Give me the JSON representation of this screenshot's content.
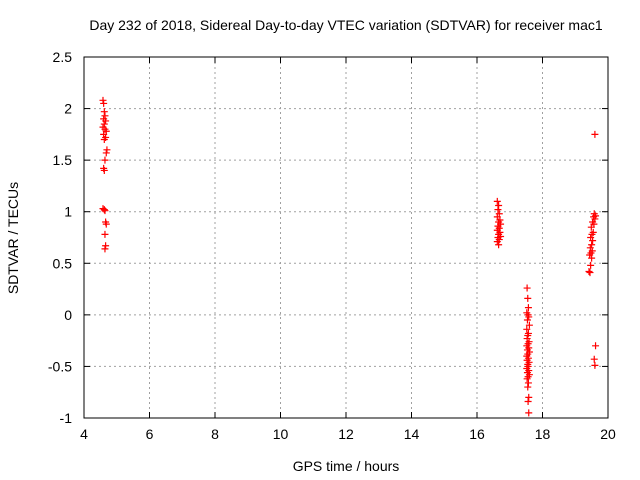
{
  "chart_data": {
    "type": "scatter",
    "title": "Day 232 of 2018, Sidereal Day-to-day VTEC variation (SDTVAR) for receiver mac1",
    "xlabel": "GPS time / hours",
    "ylabel": "SDTVAR / TECUs",
    "xlim": [
      4,
      20
    ],
    "ylim": [
      -1,
      2.5
    ],
    "xticks": [
      4,
      6,
      8,
      10,
      12,
      14,
      16,
      18,
      20
    ],
    "xtick_labels": [
      "4",
      "6",
      "8",
      "10",
      "12",
      "14",
      "16",
      "18",
      "20"
    ],
    "yticks": [
      -1,
      -0.5,
      0,
      0.5,
      1,
      1.5,
      2,
      2.5
    ],
    "ytick_labels": [
      "-1",
      "-0.5",
      "0",
      "0.5",
      "1",
      "1.5",
      "2",
      "2.5"
    ],
    "grid": true,
    "marker": "+",
    "color": "#ff0000",
    "series": [
      {
        "name": "SDTVAR",
        "points": [
          [
            4.58,
            2.08
          ],
          [
            4.6,
            2.05
          ],
          [
            4.62,
            1.97
          ],
          [
            4.64,
            1.93
          ],
          [
            4.6,
            1.9
          ],
          [
            4.66,
            1.88
          ],
          [
            4.62,
            1.85
          ],
          [
            4.58,
            1.82
          ],
          [
            4.64,
            1.8
          ],
          [
            4.68,
            1.78
          ],
          [
            4.6,
            1.75
          ],
          [
            4.66,
            1.72
          ],
          [
            4.62,
            1.7
          ],
          [
            4.7,
            1.6
          ],
          [
            4.68,
            1.57
          ],
          [
            4.64,
            1.5
          ],
          [
            4.6,
            1.42
          ],
          [
            4.62,
            1.4
          ],
          [
            4.58,
            1.03
          ],
          [
            4.62,
            1.02
          ],
          [
            4.64,
            1.01
          ],
          [
            4.66,
            0.9
          ],
          [
            4.68,
            0.88
          ],
          [
            4.64,
            0.78
          ],
          [
            4.66,
            0.67
          ],
          [
            4.64,
            0.64
          ],
          [
            16.62,
            1.1
          ],
          [
            16.66,
            1.06
          ],
          [
            16.64,
            1.02
          ],
          [
            16.68,
            0.98
          ],
          [
            16.62,
            0.95
          ],
          [
            16.7,
            0.92
          ],
          [
            16.66,
            0.9
          ],
          [
            16.72,
            0.88
          ],
          [
            16.64,
            0.86
          ],
          [
            16.68,
            0.84
          ],
          [
            16.62,
            0.82
          ],
          [
            16.7,
            0.8
          ],
          [
            16.66,
            0.78
          ],
          [
            16.72,
            0.76
          ],
          [
            16.64,
            0.75
          ],
          [
            16.68,
            0.73
          ],
          [
            16.62,
            0.71
          ],
          [
            16.66,
            0.68
          ],
          [
            17.53,
            0.26
          ],
          [
            17.55,
            0.16
          ],
          [
            17.57,
            0.07
          ],
          [
            17.52,
            0.02
          ],
          [
            17.56,
            0.0
          ],
          [
            17.58,
            -0.02
          ],
          [
            17.54,
            -0.05
          ],
          [
            17.6,
            -0.1
          ],
          [
            17.52,
            -0.14
          ],
          [
            17.57,
            -0.18
          ],
          [
            17.55,
            -0.2
          ],
          [
            17.53,
            -0.23
          ],
          [
            17.59,
            -0.26
          ],
          [
            17.56,
            -0.28
          ],
          [
            17.52,
            -0.3
          ],
          [
            17.58,
            -0.32
          ],
          [
            17.54,
            -0.34
          ],
          [
            17.6,
            -0.36
          ],
          [
            17.55,
            -0.38
          ],
          [
            17.52,
            -0.4
          ],
          [
            17.57,
            -0.42
          ],
          [
            17.53,
            -0.44
          ],
          [
            17.59,
            -0.46
          ],
          [
            17.55,
            -0.48
          ],
          [
            17.56,
            -0.5
          ],
          [
            17.52,
            -0.52
          ],
          [
            17.58,
            -0.54
          ],
          [
            17.54,
            -0.56
          ],
          [
            17.6,
            -0.58
          ],
          [
            17.56,
            -0.6
          ],
          [
            17.53,
            -0.62
          ],
          [
            17.57,
            -0.66
          ],
          [
            17.55,
            -0.7
          ],
          [
            17.58,
            -0.8
          ],
          [
            17.56,
            -0.84
          ],
          [
            17.58,
            -0.95
          ],
          [
            19.42,
            0.42
          ],
          [
            19.45,
            0.41
          ],
          [
            19.47,
            0.48
          ],
          [
            19.5,
            0.55
          ],
          [
            19.44,
            0.58
          ],
          [
            19.48,
            0.6
          ],
          [
            19.52,
            0.62
          ],
          [
            19.46,
            0.65
          ],
          [
            19.5,
            0.68
          ],
          [
            19.53,
            0.72
          ],
          [
            19.47,
            0.75
          ],
          [
            19.51,
            0.78
          ],
          [
            19.55,
            0.8
          ],
          [
            19.49,
            0.85
          ],
          [
            19.57,
            0.88
          ],
          [
            19.53,
            0.9
          ],
          [
            19.6,
            0.93
          ],
          [
            19.56,
            0.95
          ],
          [
            19.62,
            0.96
          ],
          [
            19.58,
            0.98
          ],
          [
            19.6,
            1.75
          ],
          [
            19.62,
            -0.3
          ],
          [
            19.58,
            -0.43
          ],
          [
            19.6,
            -0.49
          ]
        ]
      }
    ]
  }
}
